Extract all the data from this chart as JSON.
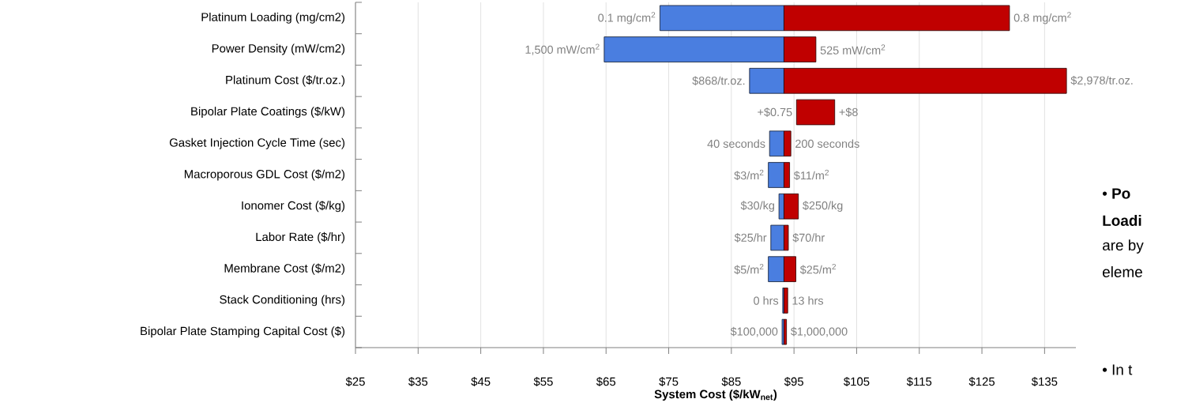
{
  "chart_data": {
    "type": "bar",
    "orientation": "horizontal",
    "categories": [
      "Platinum Loading (mg/cm2)",
      "Power Density (mW/cm2)",
      "Platinum Cost ($/tr.oz.)",
      "Bipolar Plate Coatings ($/kW)",
      "Gasket Injection Cycle Time (sec)",
      "Macroporous GDL Cost ($/m2)",
      "Ionomer Cost ($/kg)",
      "Labor Rate ($/hr)",
      "Membrane Cost ($/m2)",
      "Stack Conditioning (hrs)",
      "Bipolar Plate Stamping Capital Cost ($)"
    ],
    "series": [
      {
        "color": "#4a7ee0",
        "base": [
          73.6,
          64.7,
          87.9,
          null,
          91.1,
          90.9,
          92.6,
          91.3,
          90.9,
          93.2,
          93.1
        ],
        "values": [
          19.8,
          28.7,
          5.5,
          null,
          2.3,
          2.5,
          0.8,
          2.1,
          2.5,
          0.2,
          0.3
        ]
      },
      {
        "color": "#c00000",
        "base": [
          93.4,
          93.4,
          93.4,
          95.4,
          93.4,
          93.4,
          93.4,
          93.4,
          93.4,
          93.4,
          93.4
        ],
        "values": [
          36.0,
          5.1,
          45.1,
          6.1,
          1.1,
          0.9,
          2.3,
          0.7,
          1.9,
          0.6,
          0.4
        ]
      }
    ],
    "xlabel": "System Cost ($/kW$_{net}$)",
    "xlim": [
      25,
      140
    ],
    "xticks": [
      {
        "value": 25,
        "label": "$25"
      },
      {
        "value": 35,
        "label": "$35"
      },
      {
        "value": 45,
        "label": "$45"
      },
      {
        "value": 55,
        "label": "$55"
      },
      {
        "value": 65,
        "label": "$65"
      },
      {
        "value": 75,
        "label": "$75"
      },
      {
        "value": 85,
        "label": "$85"
      },
      {
        "value": 95,
        "label": "$95"
      },
      {
        "value": 105,
        "label": "$105"
      },
      {
        "value": 115,
        "label": "$115"
      },
      {
        "value": 125,
        "label": "$125"
      },
      {
        "value": 135,
        "label": "$135"
      }
    ],
    "grid": "x",
    "annotations": [
      {
        "text": "0.1 mg/cm$^{2}$",
        "x": 73.6,
        "y": "Platinum Loading (mg/cm2)"
      },
      {
        "text": "0.8 mg/cm$^{2}$",
        "x": 129.4,
        "y": "Platinum Loading (mg/cm2)"
      },
      {
        "text": "1,500 mW/cm$^{2}$",
        "x": 64.7,
        "y": "Power Density (mW/cm2)"
      },
      {
        "text": "525 mW/cm$^{2}$",
        "x": 98.5,
        "y": "Power Density (mW/cm2)"
      },
      {
        "text": "$868/tr.oz.",
        "x": 87.9,
        "y": "Platinum Cost ($/tr.oz.)"
      },
      {
        "text": "$2,978/tr.oz.",
        "x": 138.5,
        "y": "Platinum Cost ($/tr.oz.)"
      },
      {
        "text": "+$0.75",
        "x": 95.4,
        "y": "Bipolar Plate Coatings ($/kW)"
      },
      {
        "text": "+$8",
        "x": 101.5,
        "y": "Bipolar Plate Coatings ($/kW)"
      },
      {
        "text": "40 seconds",
        "x": 91.1,
        "y": "Gasket Injection Cycle Time (sec)"
      },
      {
        "text": "200 seconds",
        "x": 94.5,
        "y": "Gasket Injection Cycle Time (sec)"
      },
      {
        "text": "$3/m$^{2}$",
        "x": 90.9,
        "y": "Macroporous GDL Cost ($/m2)"
      },
      {
        "text": "$11/m$^{2}$",
        "x": 94.3,
        "y": "Macroporous GDL Cost ($/m2)"
      },
      {
        "text": "$30/kg",
        "x": 92.6,
        "y": "Ionomer Cost ($/kg)"
      },
      {
        "text": "$250/kg",
        "x": 95.7,
        "y": "Ionomer Cost ($/kg)"
      },
      {
        "text": "$25/hr",
        "x": 91.3,
        "y": "Labor Rate ($/hr)"
      },
      {
        "text": "$70/hr",
        "x": 94.1,
        "y": "Labor Rate ($/hr)"
      },
      {
        "text": "$5/m$^{2}$",
        "x": 90.9,
        "y": "Membrane Cost ($/m2)"
      },
      {
        "text": "$25/m$^{2}$",
        "x": 95.3,
        "y": "Membrane Cost ($/m2)"
      },
      {
        "text": "0 hrs",
        "x": 93.2,
        "y": "Stack Conditioning (hrs)"
      },
      {
        "text": "13 hrs",
        "x": 94.0,
        "y": "Stack Conditioning (hrs)"
      },
      {
        "text": "$100,000",
        "x": 93.1,
        "y": "Bipolar Plate Stamping Capital Cost ($)"
      },
      {
        "text": "$1,000,000",
        "x": 93.8,
        "y": "Bipolar Plate Stamping Capital Cost ($)"
      },
      "• **Po**",
      "**Loadi**",
      "are by",
      "eleme",
      "• In t"
    ]
  }
}
